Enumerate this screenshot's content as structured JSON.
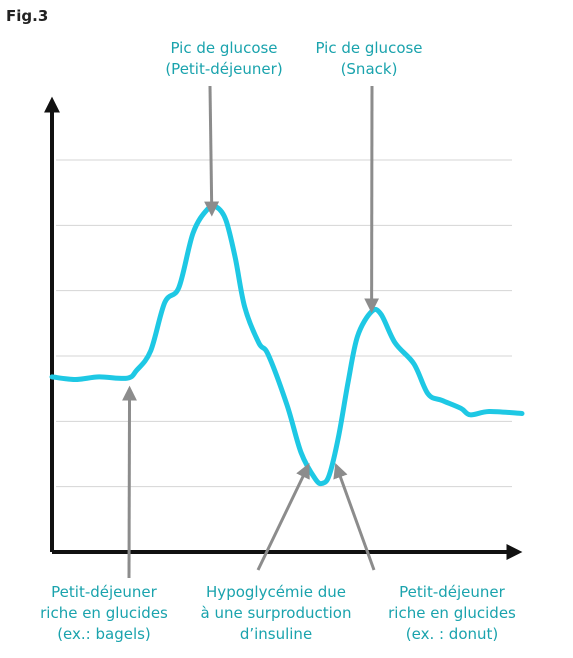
{
  "figure_label": "Fig.3",
  "colors": {
    "curve": "#1ec8e4",
    "annotation_text": "#1aa3ad",
    "axis": "#111111",
    "grid": "#d4d4d4",
    "pointer": "#8c8c8c"
  },
  "chart_data": {
    "type": "line",
    "title": "",
    "xlabel": "",
    "ylabel": "",
    "grid": true,
    "xlim": [
      0,
      100
    ],
    "ylim": [
      0,
      6
    ],
    "series": [
      {
        "values": [
          {
            "x": 0,
            "y": 2.68
          },
          {
            "x": 5,
            "y": 2.64
          },
          {
            "x": 10,
            "y": 2.68
          },
          {
            "x": 16,
            "y": 2.66
          },
          {
            "x": 18,
            "y": 2.78
          },
          {
            "x": 21,
            "y": 3.08
          },
          {
            "x": 24,
            "y": 3.82
          },
          {
            "x": 27,
            "y": 4.05
          },
          {
            "x": 30,
            "y": 4.88
          },
          {
            "x": 33,
            "y": 5.24
          },
          {
            "x": 35,
            "y": 5.28
          },
          {
            "x": 37,
            "y": 5.08
          },
          {
            "x": 39,
            "y": 4.5
          },
          {
            "x": 41,
            "y": 3.75
          },
          {
            "x": 44,
            "y": 3.2
          },
          {
            "x": 46,
            "y": 3.02
          },
          {
            "x": 50,
            "y": 2.25
          },
          {
            "x": 53,
            "y": 1.52
          },
          {
            "x": 56,
            "y": 1.12
          },
          {
            "x": 57.5,
            "y": 1.05
          },
          {
            "x": 59,
            "y": 1.18
          },
          {
            "x": 61,
            "y": 1.78
          },
          {
            "x": 63,
            "y": 2.6
          },
          {
            "x": 65,
            "y": 3.3
          },
          {
            "x": 68,
            "y": 3.68
          },
          {
            "x": 70,
            "y": 3.64
          },
          {
            "x": 73,
            "y": 3.2
          },
          {
            "x": 77,
            "y": 2.88
          },
          {
            "x": 80,
            "y": 2.42
          },
          {
            "x": 83,
            "y": 2.32
          },
          {
            "x": 87,
            "y": 2.2
          },
          {
            "x": 89,
            "y": 2.1
          },
          {
            "x": 93,
            "y": 2.15
          },
          {
            "x": 100,
            "y": 2.12
          }
        ]
      }
    ],
    "annotations": [
      {
        "id": "peak-breakfast",
        "lines": [
          "Pic de glucose",
          "(Petit-déjeuner)"
        ],
        "target": {
          "x": 34,
          "y": 5.18
        },
        "placement": "above"
      },
      {
        "id": "peak-snack",
        "lines": [
          "Pic de glucose",
          "(Snack)"
        ],
        "target": {
          "x": 68,
          "y": 3.7
        },
        "placement": "above"
      },
      {
        "id": "breakfast-bagels",
        "lines": [
          "Petit-déjeuner",
          "riche en glucides",
          "(ex.: bagels)"
        ],
        "target": {
          "x": 16.5,
          "y": 2.5
        },
        "placement": "below"
      },
      {
        "id": "hypoglycemia",
        "lines": [
          "Hypoglycémie due",
          "à une surproduction",
          "d’insuline"
        ],
        "target": {
          "x": 54.5,
          "y": 1.32
        },
        "placement": "below"
      },
      {
        "id": "breakfast-donut",
        "lines": [
          "Petit-déjeuner",
          "riche en glucides",
          "(ex. : donut)"
        ],
        "target": {
          "x": 60.5,
          "y": 1.32
        },
        "placement": "below"
      }
    ]
  }
}
